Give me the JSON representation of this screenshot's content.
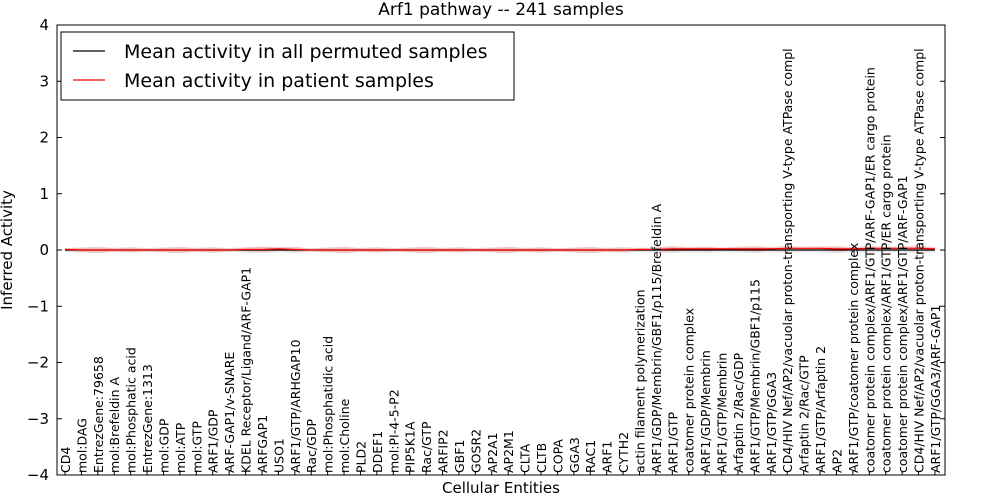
{
  "chart_data": {
    "type": "line",
    "title": "Arf1 pathway -- 241 samples",
    "xlabel": "Cellular Entities",
    "ylabel": "Inferred Activity",
    "ylim": [
      -4,
      4
    ],
    "yticks": [
      "4",
      "3",
      "2",
      "1",
      "0",
      "−1",
      "−2",
      "−3",
      "−4"
    ],
    "categories": [
      "CD4",
      "mol:DAG",
      "EntrezGene:79658",
      "mol:Brefeldin A",
      "mol:Phosphatic acid",
      "EntrezGene:1313",
      "mol:GDP",
      "mol:ATP",
      "mol:GTP",
      "ARF1/GDP",
      "ARF-GAP1/v-SNARE",
      "KDEL Receptor/Ligand/ARF-GAP1",
      "ARFGAP1",
      "USO1",
      "ARF1/GTP/ARHGAP10",
      "Rac/GDP",
      "mol:Phosphatidic acid",
      "mol:Choline",
      "PLD2",
      "DDEF1",
      "mol:PI-4-5-P2",
      "PIP5K1A",
      "Rac/GTP",
      "ARFIP2",
      "GBF1",
      "GOSR2",
      "AP2A1",
      "AP2M1",
      "CLTA",
      "CLTB",
      "COPA",
      "GGA3",
      "RAC1",
      "ARF1",
      "CYTH2",
      "actin filament polymerization",
      "ARF1/GDP/Membrin/GBF1/p115/Brefeldin A",
      "ARF1/GTP",
      "coatomer protein complex",
      "ARF1/GDP/Membrin",
      "ARF1/GTP/Membrin",
      "Arfaptin 2/Rac/GDP",
      "ARF1/GTP/Membrin/GBF1/p115",
      "ARF1/GTP/GGA3",
      "CD4/HIV Nef/AP2/vacuolar proton-transporting V-type ATPase compl",
      "Arfaptin 2/Rac/GTP",
      "ARF1/GTP/Arfaptin 2",
      "AP2",
      "ARF1/GTP/coatomer protein complex",
      "coatomer protein complex/ARF1/GTP/ARF-GAP1/ER cargo protein",
      "coatomer protein complex/ARF1/GTP/ER cargo protein",
      "coatomer protein complex/ARF1/GTP/ARF-GAP1",
      "CD4/HIV Nef/AP2/vacuolar proton-transporting V-type ATPase compl",
      "ARF1/GTP/GGA3/ARF-GAP1"
    ],
    "series": [
      {
        "name": "Mean activity in all permuted samples",
        "color": "#000000",
        "values": [
          0,
          0,
          0,
          0,
          0,
          0,
          0,
          0,
          0,
          0,
          0,
          0,
          0,
          0,
          0,
          0,
          0,
          0,
          0,
          0,
          0,
          0,
          0,
          0,
          0,
          0,
          0,
          0,
          0,
          0,
          0,
          0,
          0,
          0,
          0,
          0,
          0,
          0,
          0,
          0,
          0,
          0,
          0,
          0,
          0,
          0,
          0,
          0,
          0,
          0,
          0,
          0,
          0,
          0
        ]
      },
      {
        "name": "Mean activity in patient samples",
        "color": "#ff0000",
        "values": [
          0.01,
          0.0,
          0.0,
          0.0,
          0.0,
          0.0,
          0.0,
          0.0,
          0.0,
          0.0,
          0.0,
          0.01,
          0.01,
          0.02,
          0.01,
          0.0,
          0.0,
          0.0,
          0.0,
          0.0,
          0.0,
          0.0,
          0.0,
          0.0,
          0.0,
          0.0,
          0.0,
          0.0,
          0.0,
          0.0,
          0.0,
          0.0,
          0.0,
          0.0,
          0.0,
          0.01,
          0.01,
          0.02,
          0.02,
          0.02,
          0.02,
          0.02,
          0.02,
          0.02,
          0.03,
          0.03,
          0.03,
          0.02,
          0.02,
          0.03,
          0.03,
          0.03,
          0.03,
          0.02
        ]
      }
    ],
    "legend": {
      "position": "top-left",
      "entries": [
        "Mean activity in all permuted samples",
        "Mean activity in patient samples"
      ]
    }
  }
}
